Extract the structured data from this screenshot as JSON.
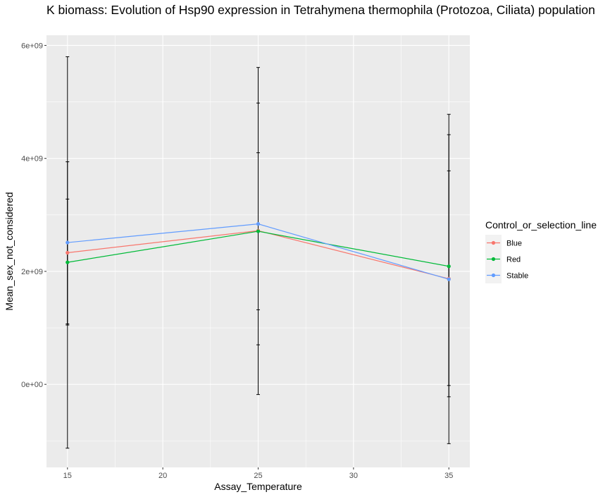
{
  "chart_data": {
    "type": "line",
    "title": "K biomass: Evolution of Hsp90 expression in Tetrahymena thermophila (Protozoa, Ciliata) population",
    "xlabel": "Assay_Temperature",
    "ylabel": "Mean_sex_not_considered",
    "x_ticks": [
      15,
      20,
      25,
      30,
      35
    ],
    "x_tick_labels": [
      "15",
      "20",
      "25",
      "30",
      "35"
    ],
    "xlim": [
      13.9,
      36.1
    ],
    "y_ticks": [
      0,
      2000000000,
      4000000000,
      6000000000
    ],
    "y_tick_labels": [
      "0e+00",
      "2e+09",
      "4e+09",
      "6e+09"
    ],
    "ylim": [
      -1470000000,
      6180000000
    ],
    "grid": true,
    "legend": {
      "title": "Control_or_selection_line",
      "position": "right",
      "entries": [
        {
          "label": "Blue",
          "color": "#F8766D"
        },
        {
          "label": "Red",
          "color": "#00BA38"
        },
        {
          "label": "Stable",
          "color": "#619CFF"
        }
      ]
    },
    "x": [
      15,
      25,
      35
    ],
    "series": [
      {
        "name": "Blue",
        "color": "#F8766D",
        "values": [
          2330000000,
          2720000000,
          1870000000
        ],
        "err_low": [
          1070000000,
          700000000,
          -220000000
        ],
        "err_high": [
          3280000000,
          4980000000,
          3780000000
        ]
      },
      {
        "name": "Red",
        "color": "#00BA38",
        "values": [
          2160000000,
          2710000000,
          2090000000
        ],
        "err_low": [
          1050000000,
          1320000000,
          -20000000
        ],
        "err_high": [
          3940000000,
          4100000000,
          4420000000
        ]
      },
      {
        "name": "Stable",
        "color": "#619CFF",
        "values": [
          2510000000,
          2840000000,
          1860000000
        ],
        "err_low": [
          -1130000000,
          -180000000,
          -1050000000
        ],
        "err_high": [
          5800000000,
          5610000000,
          4780000000
        ]
      }
    ]
  }
}
